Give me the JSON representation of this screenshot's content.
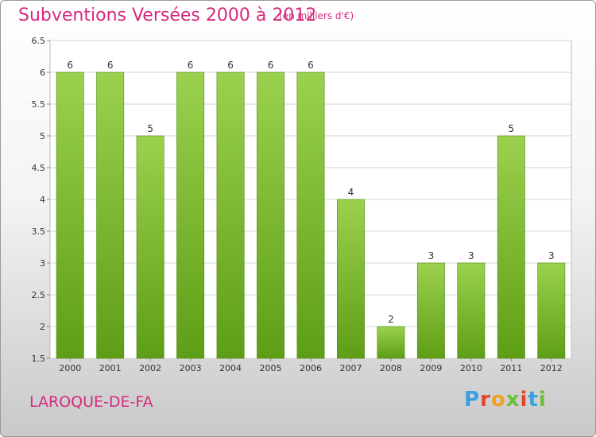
{
  "header": {
    "title": "Subventions Versées 2000 à 2012",
    "subtitle": "(en milliers d'€)"
  },
  "footer": {
    "commune": "LAROQUE-DE-FA",
    "brand": "Proxiti",
    "brand_colors": [
      "#3aa0e0",
      "#e0452b",
      "#f0a020",
      "#6abf3a",
      "#e0452b",
      "#3aa0e0",
      "#6abf3a"
    ]
  },
  "chart_data": {
    "type": "bar",
    "title": "Subventions Versées 2000 à 2012",
    "subtitle": "(en milliers d'€)",
    "categories": [
      "2000",
      "2001",
      "2002",
      "2003",
      "2004",
      "2005",
      "2006",
      "2007",
      "2008",
      "2009",
      "2010",
      "2011",
      "2012"
    ],
    "values": [
      6,
      6,
      5,
      6,
      6,
      6,
      6,
      4,
      2,
      3,
      3,
      5,
      3
    ],
    "ylim": [
      1.5,
      6.5
    ],
    "yticks": [
      1.5,
      2,
      2.5,
      3,
      3.5,
      4,
      4.5,
      5,
      5.5,
      6,
      6.5
    ],
    "grid": true,
    "bar_color_top": "#9bd14e",
    "bar_color_bottom": "#5e9e16"
  }
}
